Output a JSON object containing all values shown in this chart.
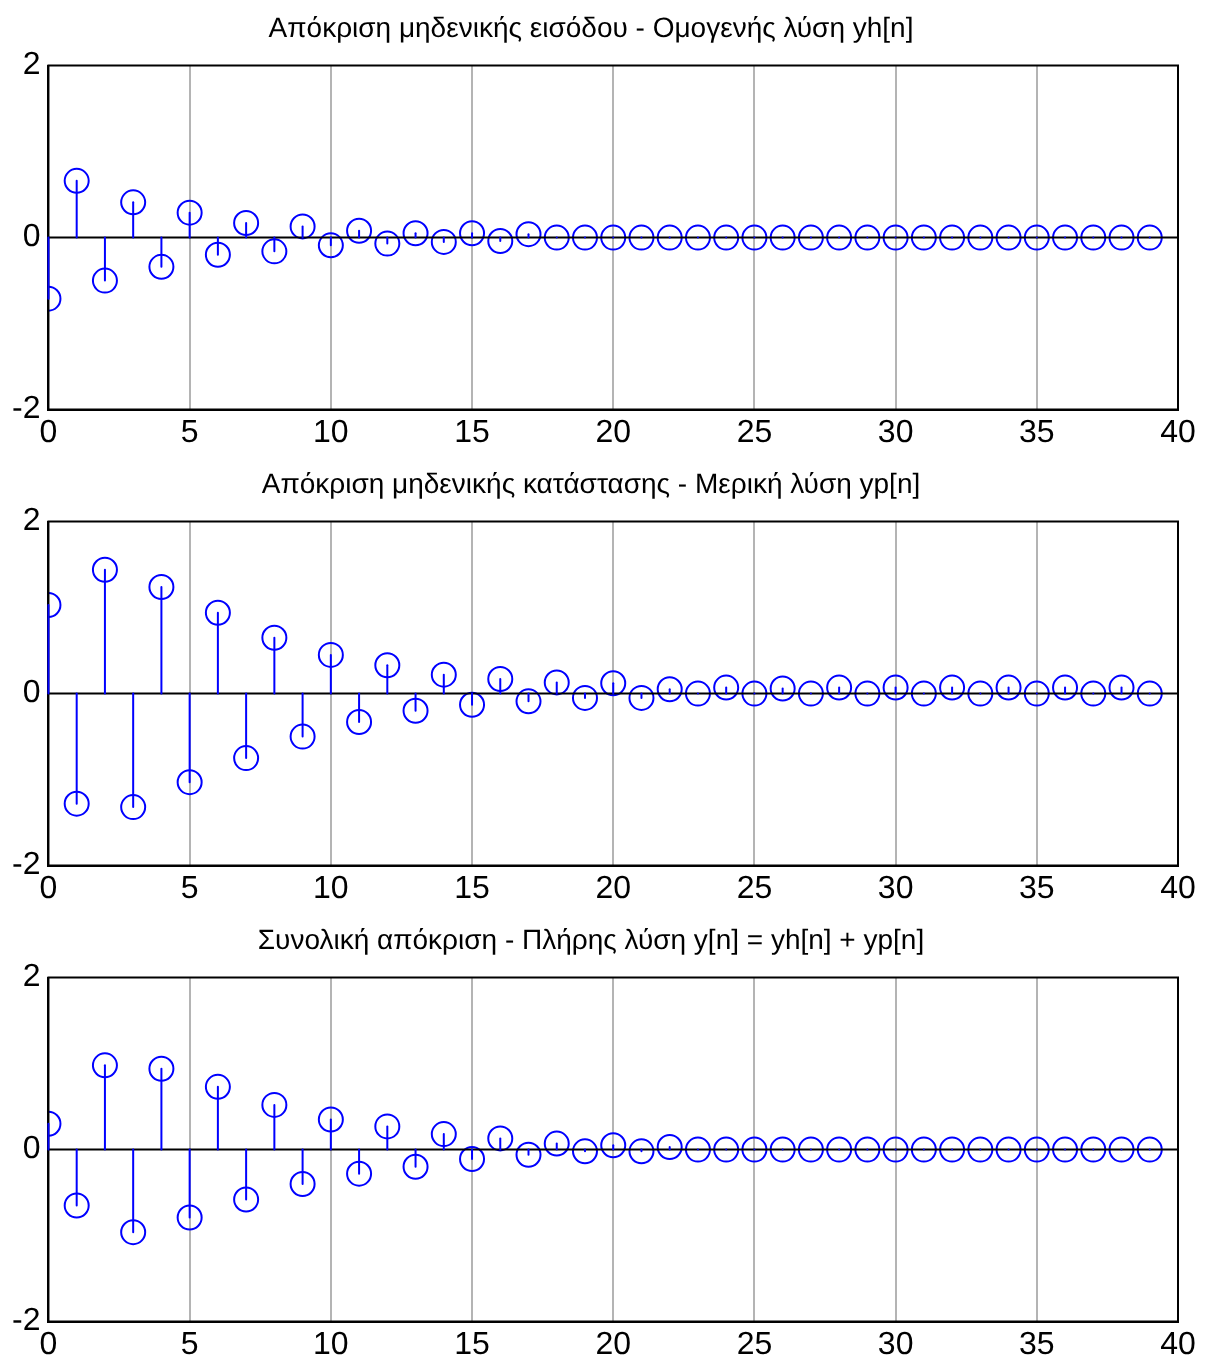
{
  "chart_data": [
    {
      "type": "lollipop",
      "title": "Απόκριση μηδενικής εισόδου - Ομογενής λύση yh[n]",
      "color": "#0000ff",
      "marker": "circle",
      "grid": "x",
      "xlim": [
        0,
        40
      ],
      "ylim": [
        -2,
        2
      ],
      "xticks": [
        0,
        5,
        10,
        15,
        20,
        25,
        30,
        35,
        40
      ],
      "yticks": [
        -2,
        0,
        2
      ],
      "x": [
        0,
        1,
        2,
        3,
        4,
        5,
        6,
        7,
        8,
        9,
        10,
        11,
        12,
        13,
        14,
        15,
        16,
        17,
        18,
        19,
        20,
        21,
        22,
        23,
        24,
        25,
        26,
        27,
        28,
        29,
        30,
        31,
        32,
        33,
        34,
        35,
        36,
        37,
        38,
        39
      ],
      "values": [
        -0.71,
        0.66,
        -0.5,
        0.41,
        -0.34,
        0.29,
        -0.2,
        0.17,
        -0.16,
        0.13,
        -0.09,
        0.08,
        -0.07,
        0.05,
        -0.05,
        0.05,
        -0.04,
        0.04,
        0,
        0,
        0,
        0,
        0,
        0,
        0,
        0,
        0,
        0,
        0,
        0,
        0,
        0,
        0,
        0,
        0,
        0,
        0,
        0,
        0,
        0
      ]
    },
    {
      "type": "lollipop",
      "title": "Απόκριση μηδενικής κατάστασης - Μερική λύση yp[n]",
      "color": "#0000ff",
      "marker": "circle",
      "grid": "x",
      "xlim": [
        0,
        40
      ],
      "ylim": [
        -2,
        2
      ],
      "xticks": [
        0,
        5,
        10,
        15,
        20,
        25,
        30,
        35,
        40
      ],
      "yticks": [
        -2,
        0,
        2
      ],
      "x": [
        0,
        1,
        2,
        3,
        4,
        5,
        6,
        7,
        8,
        9,
        10,
        11,
        12,
        13,
        14,
        15,
        16,
        17,
        18,
        19,
        20,
        21,
        22,
        23,
        24,
        25,
        26,
        27,
        28,
        29,
        30,
        31,
        32,
        33,
        34,
        35,
        36,
        37,
        38,
        39
      ],
      "values": [
        1.03,
        -1.28,
        1.44,
        -1.32,
        1.24,
        -1.03,
        0.94,
        -0.75,
        0.65,
        -0.5,
        0.45,
        -0.33,
        0.33,
        -0.2,
        0.22,
        -0.13,
        0.17,
        -0.09,
        0.13,
        -0.05,
        0.12,
        -0.05,
        0.05,
        0,
        0.07,
        0,
        0.06,
        0,
        0.07,
        0,
        0.07,
        0,
        0.07,
        0,
        0.07,
        0,
        0.07,
        0,
        0.07,
        0
      ]
    },
    {
      "type": "lollipop",
      "title": "Συνολική απόκριση - Πλήρης λύση y[n] = yh[n] + yp[n]",
      "color": "#0000ff",
      "marker": "circle",
      "grid": "x",
      "xlim": [
        0,
        40
      ],
      "ylim": [
        -2,
        2
      ],
      "xticks": [
        0,
        5,
        10,
        15,
        20,
        25,
        30,
        35,
        40
      ],
      "yticks": [
        -2,
        0,
        2
      ],
      "x": [
        0,
        1,
        2,
        3,
        4,
        5,
        6,
        7,
        8,
        9,
        10,
        11,
        12,
        13,
        14,
        15,
        16,
        17,
        18,
        19,
        20,
        21,
        22,
        23,
        24,
        25,
        26,
        27,
        28,
        29,
        30,
        31,
        32,
        33,
        34,
        35,
        36,
        37,
        38,
        39
      ],
      "values": [
        0.3,
        -0.65,
        0.98,
        -0.96,
        0.94,
        -0.79,
        0.73,
        -0.58,
        0.52,
        -0.4,
        0.35,
        -0.28,
        0.27,
        -0.2,
        0.18,
        -0.11,
        0.13,
        -0.06,
        0.07,
        -0.02,
        0.05,
        -0.02,
        0.03,
        0,
        0,
        0,
        0,
        0,
        0,
        0,
        0,
        0,
        0,
        0,
        0,
        0,
        0,
        0,
        0,
        0
      ]
    }
  ]
}
